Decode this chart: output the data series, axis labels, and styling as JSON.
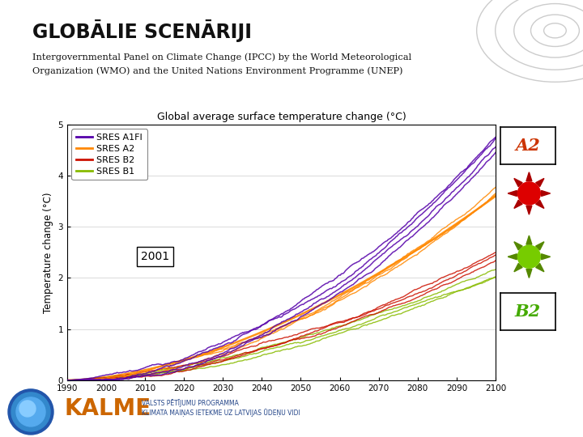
{
  "title_main": "GLOBĀLIE SCENĀRIJI",
  "subtitle_line1": "Intergovernmental Panel on Climate Change (IPCC) by the World Meteorological",
  "subtitle_line2": "Organization (WMO) and the United Nations Environment Programme (UNEP)",
  "chart_title": "Global average surface temperature change (°C)",
  "ylabel": "Temperature change (°C)",
  "xlim": [
    1990,
    2100
  ],
  "ylim": [
    0,
    5
  ],
  "yticks": [
    0,
    1,
    2,
    3,
    4,
    5
  ],
  "xticks": [
    1990,
    2000,
    2010,
    2020,
    2030,
    2040,
    2050,
    2060,
    2070,
    2080,
    2090,
    2100
  ],
  "scenarios": [
    "SRES A1FI",
    "SRES A2",
    "SRES B2",
    "SRES B1"
  ],
  "colors_chart": [
    "#5500aa",
    "#ff8800",
    "#cc1100",
    "#88bb00"
  ],
  "label_A2_color": "#cc3300",
  "label_B2_color": "#44aa00",
  "background_color": "#ffffff",
  "annotation_2001_text": "2001",
  "seed": 42,
  "circle_color": "#cccccc",
  "sun_red_body": "#dd0000",
  "sun_red_ray": "#aa0000",
  "sun_green_body": "#77cc00",
  "sun_green_ray": "#558800"
}
